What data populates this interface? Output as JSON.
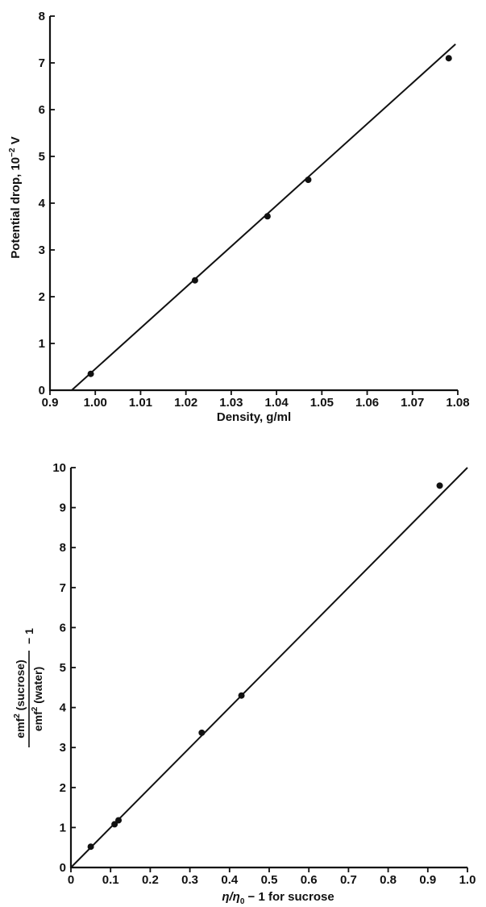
{
  "chart_data": [
    {
      "type": "scatter",
      "title": "",
      "xlabel": "Density, g/ml",
      "ylabel": "Potential drop, 10⁻² V",
      "ylabel_parts": {
        "base": "Potential drop, 10",
        "sup": "−2",
        "unit": " V"
      },
      "xlim": [
        0.9,
        1.08
      ],
      "ylim": [
        0,
        8
      ],
      "xticks": [
        "0.9",
        "1.00",
        "1.01",
        "1.02",
        "1.03",
        "1.04",
        "1.05",
        "1.06",
        "1.07",
        "1.08"
      ],
      "yticks": [
        "0",
        "1",
        "2",
        "3",
        "4",
        "5",
        "6",
        "7",
        "8"
      ],
      "x_axis_note": "first tick labelled 0.9 is drawn at the position of 0.99 (broken axis)",
      "grid": false,
      "series": [
        {
          "points": [
            {
              "x": 0.999,
              "y": 0.35
            },
            {
              "x": 1.022,
              "y": 2.35
            },
            {
              "x": 1.038,
              "y": 3.72
            },
            {
              "x": 1.047,
              "y": 4.5
            },
            {
              "x": 1.078,
              "y": 7.1
            }
          ]
        }
      ],
      "fit_line": {
        "x": [
          0.9948,
          1.0795
        ],
        "y": [
          0.0,
          7.4
        ]
      }
    },
    {
      "type": "scatter",
      "title": "",
      "xlabel": "η/η₀ − 1 for sucrose",
      "xlabel_parts": {
        "base": "η/η",
        "sub": "0",
        "rest": " − 1 for sucrose"
      },
      "ylabel": "emf² (sucrose) / emf² (water) − 1",
      "ylabel_parts": {
        "num_base": "emf",
        "num_sup": "2",
        "num_rest": " (sucrose)",
        "den_base": "emf",
        "den_sup": "2",
        "den_rest": " (water)",
        "minus_one": "− 1"
      },
      "xlim": [
        0,
        1.0
      ],
      "ylim": [
        0,
        10
      ],
      "xticks": [
        "0",
        "0.1",
        "0.2",
        "0.3",
        "0.4",
        "0.5",
        "0.6",
        "0.7",
        "0.8",
        "0.9",
        "1.0"
      ],
      "yticks": [
        "0",
        "1",
        "2",
        "3",
        "4",
        "5",
        "6",
        "7",
        "8",
        "9",
        "10"
      ],
      "grid": false,
      "series": [
        {
          "points": [
            {
              "x": 0.05,
              "y": 0.52
            },
            {
              "x": 0.11,
              "y": 1.08
            },
            {
              "x": 0.12,
              "y": 1.18
            },
            {
              "x": 0.33,
              "y": 3.37
            },
            {
              "x": 0.43,
              "y": 4.3
            },
            {
              "x": 0.93,
              "y": 9.55
            }
          ]
        }
      ],
      "fit_line": {
        "x": [
          0.0,
          1.0
        ],
        "y": [
          0.0,
          10.0
        ]
      }
    }
  ]
}
